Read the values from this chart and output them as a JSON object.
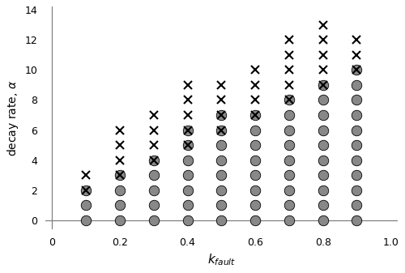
{
  "xlabel": "$k_{fault}$",
  "ylabel": "decay rate, $\\alpha$",
  "xlim": [
    -0.02,
    1.02
  ],
  "ylim": [
    -0.6,
    14.2
  ],
  "yticks": [
    0,
    2,
    4,
    6,
    8,
    10,
    12,
    14
  ],
  "xticks": [
    0,
    0.2,
    0.4,
    0.6,
    0.8,
    1.0
  ],
  "xticklabels": [
    "0",
    "0.2",
    "0.4",
    "0.6",
    "0.8",
    "1.0"
  ],
  "k_fault_values": [
    0.1,
    0.2,
    0.3,
    0.4,
    0.5,
    0.6,
    0.7,
    0.8,
    0.9
  ],
  "grey_only_alpha": {
    "0.1": [
      0,
      1
    ],
    "0.2": [
      0,
      1,
      2
    ],
    "0.3": [
      0,
      1,
      2,
      3
    ],
    "0.4": [
      0,
      1,
      2,
      3,
      4
    ],
    "0.5": [
      0,
      1,
      2,
      3,
      4,
      5
    ],
    "0.6": [
      0,
      1,
      2,
      3,
      4,
      5,
      6
    ],
    "0.7": [
      0,
      1,
      2,
      3,
      4,
      5,
      6,
      7
    ],
    "0.8": [
      0,
      1,
      2,
      3,
      4,
      5,
      6,
      7,
      8
    ],
    "0.9": [
      0,
      1,
      2,
      3,
      4,
      5,
      6,
      7,
      8,
      9
    ]
  },
  "cross_circle_alpha": {
    "0.1": [
      2
    ],
    "0.2": [
      3
    ],
    "0.3": [
      4
    ],
    "0.4": [
      5,
      6
    ],
    "0.5": [
      6,
      7
    ],
    "0.6": [
      7
    ],
    "0.7": [
      8
    ],
    "0.8": [
      9
    ],
    "0.9": [
      10
    ]
  },
  "cross_only_alpha": {
    "0.1": [
      3
    ],
    "0.2": [
      4,
      5,
      6
    ],
    "0.3": [
      5,
      6,
      7
    ],
    "0.4": [
      7,
      8,
      9
    ],
    "0.5": [
      8,
      9
    ],
    "0.6": [
      8,
      9,
      10
    ],
    "0.7": [
      9,
      10,
      11,
      12
    ],
    "0.8": [
      10,
      11,
      12,
      13
    ],
    "0.9": [
      11,
      12
    ]
  },
  "grey_color": "#888888",
  "circle_edge_color": "#000000",
  "circle_marker_size": 9,
  "cross_marker_size": 7,
  "cross_linewidth": 1.5
}
